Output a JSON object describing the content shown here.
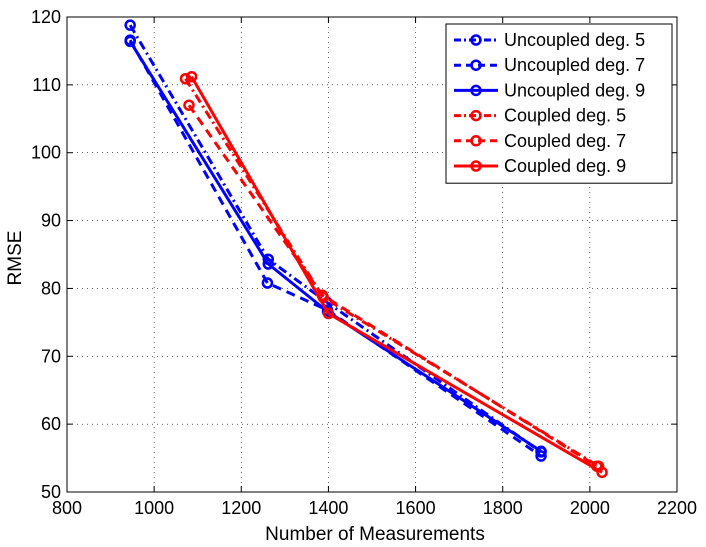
{
  "chart_data": {
    "type": "line",
    "title": "",
    "xlabel": "Number of Measurements",
    "ylabel": "RMSE",
    "xlim": [
      800,
      2200
    ],
    "ylim": [
      50,
      120
    ],
    "xticks": [
      800,
      1000,
      1200,
      1400,
      1600,
      1800,
      2000,
      2200
    ],
    "yticks": [
      50,
      60,
      70,
      80,
      90,
      100,
      110,
      120
    ],
    "grid": true,
    "legend_position": "top-right",
    "series": [
      {
        "name": "Uncoupled deg. 5",
        "color": "#0000ff",
        "linestyle": "dashdot",
        "marker": "circle",
        "x": [
          945,
          1262,
          1398,
          1888
        ],
        "y": [
          118.8,
          84.3,
          77.9,
          55.9
        ]
      },
      {
        "name": "Uncoupled deg. 7",
        "color": "#0000ff",
        "linestyle": "dashed",
        "marker": "circle",
        "x": [
          945,
          1260,
          1398,
          1888
        ],
        "y": [
          116.6,
          80.8,
          76.8,
          55.3
        ]
      },
      {
        "name": "Uncoupled deg. 9",
        "color": "#0000ff",
        "linestyle": "solid",
        "marker": "circle",
        "x": [
          945,
          1262,
          1398,
          1888
        ],
        "y": [
          116.4,
          83.6,
          76.6,
          56.0
        ]
      },
      {
        "name": "Coupled deg. 5",
        "color": "#ff0000",
        "linestyle": "dashdot",
        "marker": "circle",
        "x": [
          1072,
          1388,
          2020
        ],
        "y": [
          110.9,
          78.7,
          53.8
        ]
      },
      {
        "name": "Coupled deg. 7",
        "color": "#ff0000",
        "linestyle": "dashed",
        "marker": "circle",
        "x": [
          1080,
          1386,
          2016
        ],
        "y": [
          107.0,
          79.0,
          53.8
        ]
      },
      {
        "name": "Coupled deg. 9",
        "color": "#ff0000",
        "linestyle": "solid",
        "marker": "circle",
        "x": [
          1086,
          1400,
          2028
        ],
        "y": [
          111.2,
          76.3,
          52.9
        ]
      }
    ]
  }
}
